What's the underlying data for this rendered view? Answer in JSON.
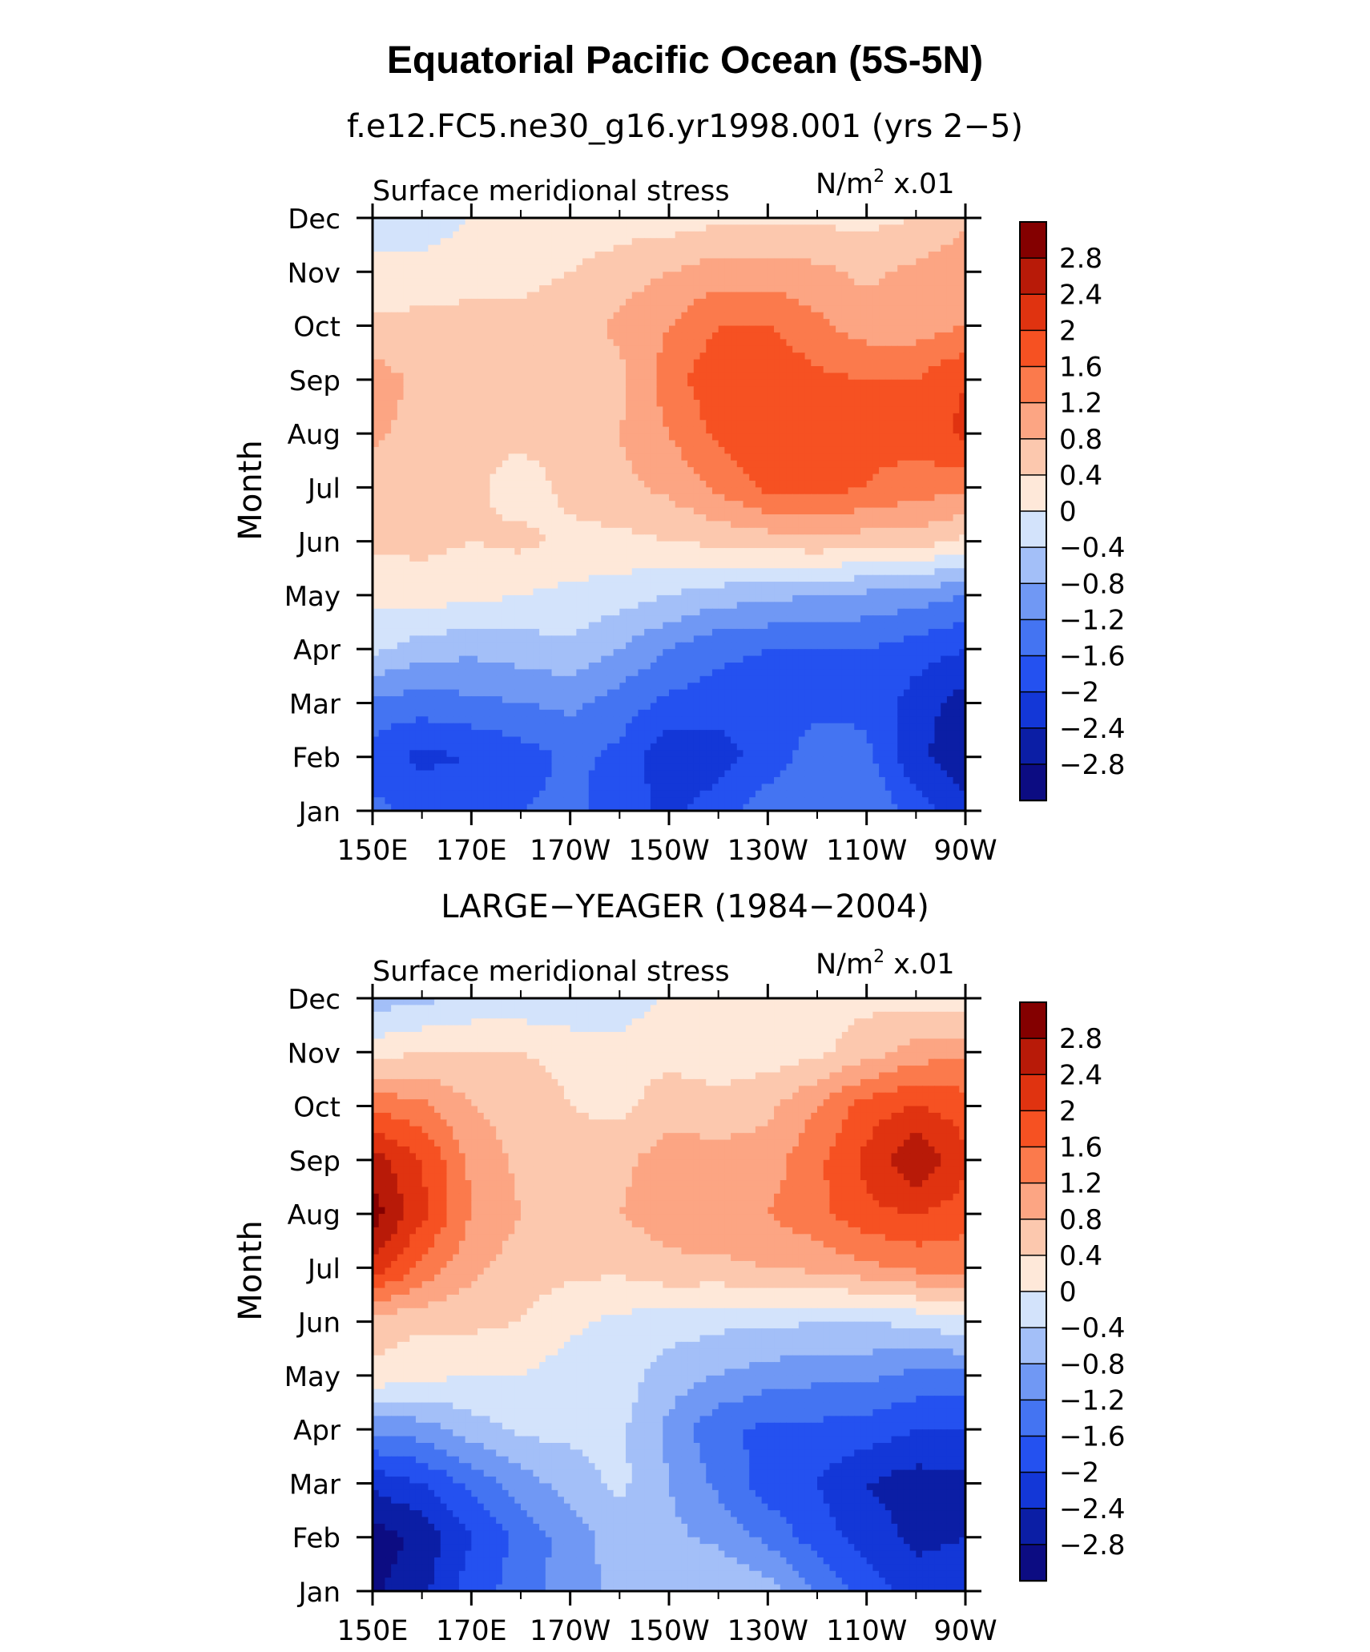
{
  "chart_data": {
    "title": "Equatorial Pacific Ocean (5S-5N)",
    "type": "heatmap",
    "levels": [
      -2.8,
      -2.4,
      -2,
      -1.6,
      -1.2,
      -0.8,
      -0.4,
      0,
      0.4,
      0.8,
      1.2,
      1.6,
      2,
      2.4,
      2.8
    ],
    "level_labels": [
      "2.8",
      "2.4",
      "2",
      "1.6",
      "1.2",
      "0.8",
      "0.4",
      "0",
      "−0.4",
      "−0.8",
      "−1.2",
      "−1.6",
      "−2",
      "−2.4",
      "−2.8"
    ],
    "colors": [
      "#0c0c82",
      "#0b1ea5",
      "#1337d7",
      "#2451f0",
      "#4474f2",
      "#7098f4",
      "#a3bff8",
      "#d3e3fb",
      "#fee8d9",
      "#fcc8ae",
      "#fca583",
      "#fb7a4c",
      "#f65122",
      "#e03310",
      "#b81a08",
      "#840000"
    ],
    "x_ticks": [
      "150E",
      "170E",
      "170W",
      "150W",
      "130W",
      "110W",
      "90W"
    ],
    "y_ticks": [
      "Jan",
      "Feb",
      "Mar",
      "Apr",
      "May",
      "Jun",
      "Jul",
      "Aug",
      "Sep",
      "Oct",
      "Nov",
      "Dec"
    ],
    "panels": [
      {
        "title": "f.e12.FC5.ne30_g16.yr1998.001 (yrs 2−5)",
        "left_label": "Surface meridional stress",
        "right_label_main": "N/m",
        "right_label_sup": "2",
        "right_label_tail": " x.01",
        "ylabel": "Month",
        "xlim": [
          150,
          270
        ],
        "ylim": [
          1,
          12
        ],
        "lon": [
          150,
          160,
          170,
          180,
          190,
          200,
          210,
          220,
          230,
          240,
          250,
          260,
          270
        ],
        "months": [
          "Jan",
          "Feb",
          "Mar",
          "Apr",
          "May",
          "Jun",
          "Jul",
          "Aug",
          "Sep",
          "Oct",
          "Nov",
          "Dec"
        ],
        "values": [
          [
            -1.5,
            -1.7,
            -1.7,
            -1.6,
            -1.5,
            -1.8,
            -2.1,
            -1.8,
            -1.4,
            -1.2,
            -1.2,
            -1.8,
            -2.3
          ],
          [
            -1.8,
            -2.1,
            -2.0,
            -1.8,
            -1.5,
            -1.7,
            -2.3,
            -2.2,
            -1.8,
            -1.4,
            -1.5,
            -2.3,
            -2.7
          ],
          [
            -1.3,
            -1.4,
            -1.3,
            -1.2,
            -1.1,
            -1.4,
            -1.7,
            -1.8,
            -1.8,
            -1.7,
            -1.7,
            -2.2,
            -2.6
          ],
          [
            -0.3,
            -0.6,
            -0.7,
            -0.6,
            -0.5,
            -0.8,
            -1.2,
            -1.5,
            -1.6,
            -1.6,
            -1.6,
            -1.8,
            -2.0
          ],
          [
            0.1,
            0.2,
            0.1,
            0.0,
            -0.1,
            -0.2,
            -0.4,
            -0.6,
            -0.7,
            -0.8,
            -0.9,
            -1.0,
            -1.2
          ],
          [
            0.5,
            0.5,
            0.4,
            0.5,
            0.3,
            0.3,
            0.4,
            0.5,
            0.6,
            0.7,
            0.6,
            0.6,
            0.3
          ],
          [
            0.6,
            0.5,
            0.5,
            0.2,
            0.5,
            0.7,
            0.9,
            1.3,
            1.7,
            1.8,
            1.6,
            1.4,
            1.3
          ],
          [
            0.9,
            0.6,
            0.5,
            0.5,
            0.6,
            0.8,
            1.2,
            1.7,
            1.9,
            1.8,
            1.7,
            1.8,
            2.1
          ],
          [
            1.0,
            0.7,
            0.8,
            0.8,
            0.6,
            0.7,
            1.4,
            1.9,
            1.9,
            1.7,
            1.6,
            1.6,
            2.0
          ],
          [
            0.5,
            0.5,
            0.5,
            0.5,
            0.6,
            0.9,
            1.2,
            1.6,
            1.6,
            1.3,
            1.0,
            1.0,
            1.2
          ],
          [
            0.1,
            0.2,
            0.3,
            0.3,
            0.4,
            0.6,
            0.8,
            1.0,
            1.0,
            0.9,
            0.7,
            0.9,
            1.1
          ],
          [
            -0.2,
            -0.3,
            0.0,
            0.1,
            0.1,
            0.2,
            0.2,
            0.3,
            0.3,
            0.3,
            0.3,
            0.4,
            0.7
          ]
        ]
      },
      {
        "title": "LARGE−YEAGER (1984−2004)",
        "left_label": "Surface meridional stress",
        "right_label_main": "N/m",
        "right_label_sup": "2",
        "right_label_tail": " x.01",
        "ylabel": "Month",
        "xlim": [
          150,
          270
        ],
        "ylim": [
          1,
          12
        ],
        "lon": [
          150,
          160,
          170,
          180,
          190,
          200,
          210,
          220,
          230,
          240,
          250,
          260,
          270
        ],
        "months": [
          "Jan",
          "Feb",
          "Mar",
          "Apr",
          "May",
          "Jun",
          "Jul",
          "Aug",
          "Sep",
          "Oct",
          "Nov",
          "Dec"
        ],
        "values": [
          [
            -2.9,
            -2.5,
            -1.8,
            -1.4,
            -1.0,
            -0.7,
            -0.4,
            -0.4,
            -0.6,
            -1.2,
            -1.8,
            -2.2,
            -2.2
          ],
          [
            -3.0,
            -2.7,
            -2.0,
            -1.5,
            -1.0,
            -0.6,
            -0.7,
            -0.9,
            -1.3,
            -1.8,
            -2.2,
            -2.5,
            -2.4
          ],
          [
            -2.3,
            -2.0,
            -1.5,
            -1.0,
            -0.6,
            -0.3,
            -0.8,
            -1.3,
            -1.8,
            -2.0,
            -2.4,
            -2.6,
            -2.5
          ],
          [
            -1.1,
            -1.0,
            -0.6,
            -0.3,
            -0.3,
            -0.3,
            -0.9,
            -1.5,
            -1.7,
            -1.7,
            -1.8,
            -2.0,
            -2.0
          ],
          [
            0.3,
            0.1,
            0.0,
            0.0,
            -0.2,
            -0.2,
            -0.6,
            -0.8,
            -1.0,
            -1.1,
            -1.1,
            -1.3,
            -1.3
          ],
          [
            0.6,
            0.5,
            0.5,
            0.4,
            0.1,
            -0.1,
            -0.2,
            -0.3,
            -0.3,
            -0.4,
            -0.4,
            -0.3,
            -0.1
          ],
          [
            2.3,
            1.5,
            0.9,
            0.6,
            0.5,
            0.5,
            0.7,
            0.7,
            0.8,
            0.9,
            1.1,
            1.3,
            1.3
          ],
          [
            3.0,
            2.1,
            1.2,
            0.8,
            0.7,
            0.8,
            1.0,
            1.1,
            1.2,
            1.5,
            1.9,
            2.0,
            1.8
          ],
          [
            2.6,
            2.0,
            1.1,
            0.7,
            0.5,
            0.7,
            1.0,
            1.0,
            1.0,
            1.5,
            2.1,
            2.8,
            2.1
          ],
          [
            1.5,
            1.3,
            0.8,
            0.6,
            0.4,
            0.3,
            0.6,
            0.5,
            0.7,
            1.2,
            1.8,
            2.0,
            1.8
          ],
          [
            0.2,
            0.4,
            0.4,
            0.4,
            0.3,
            0.2,
            0.3,
            0.2,
            0.2,
            0.3,
            0.6,
            1.0,
            1.1
          ],
          [
            -0.6,
            -0.5,
            -0.3,
            -0.3,
            -0.4,
            -0.3,
            0.1,
            0.2,
            0.2,
            0.3,
            0.3,
            0.2,
            0.1
          ]
        ]
      }
    ]
  }
}
